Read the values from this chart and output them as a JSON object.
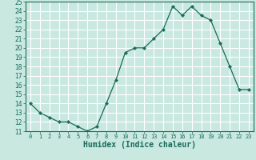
{
  "title": "",
  "xlabel": "Humidex (Indice chaleur)",
  "x_values": [
    0,
    1,
    2,
    3,
    4,
    5,
    6,
    7,
    8,
    9,
    10,
    11,
    12,
    13,
    14,
    15,
    16,
    17,
    18,
    19,
    20,
    21,
    22,
    23
  ],
  "y_values": [
    14,
    13,
    12.5,
    12,
    12,
    11.5,
    11,
    11.5,
    14,
    16.5,
    19.5,
    20,
    20,
    21,
    22,
    24.5,
    23.5,
    24.5,
    23.5,
    23,
    20.5,
    18,
    15.5,
    15.5
  ],
  "ylim": [
    11,
    25
  ],
  "xlim": [
    -0.5,
    23.5
  ],
  "yticks": [
    11,
    12,
    13,
    14,
    15,
    16,
    17,
    18,
    19,
    20,
    21,
    22,
    23,
    24,
    25
  ],
  "xticks": [
    0,
    1,
    2,
    3,
    4,
    5,
    6,
    7,
    8,
    9,
    10,
    11,
    12,
    13,
    14,
    15,
    16,
    17,
    18,
    19,
    20,
    21,
    22,
    23
  ],
  "line_color": "#1a6b5a",
  "marker_color": "#1a6b5a",
  "bg_color": "#c8e8e0",
  "grid_color": "#ffffff",
  "label_color": "#1a6b5a",
  "tick_color": "#1a6b5a",
  "label_fontsize": 7,
  "tick_fontsize": 5.5
}
